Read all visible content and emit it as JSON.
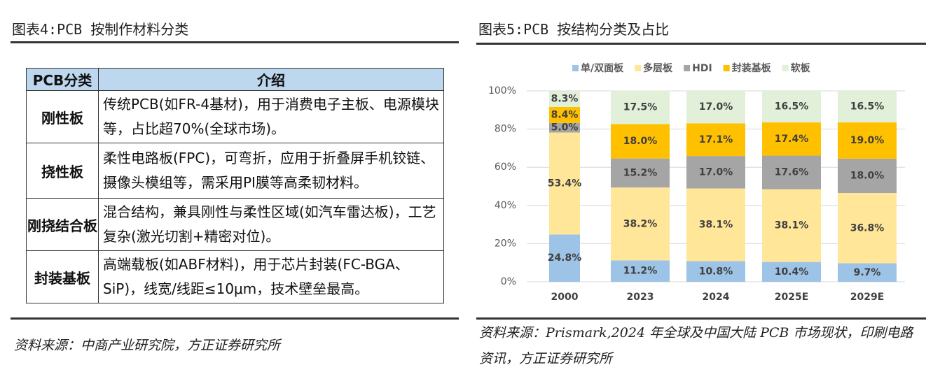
{
  "left": {
    "title": "图表4:PCB 按制作材料分类",
    "table": {
      "header": [
        "PCB分类",
        "介绍"
      ],
      "rows": [
        [
          "刚性板",
          "传统PCB(如FR-4基材)，用于消费电子主板、电源模块等，占比超70%(全球市场)。"
        ],
        [
          "挠性板",
          "柔性电路板(FPC)，可弯折，应用于折叠屏手机铰链、摄像头模组等，需采用PI膜等高柔韧材料。"
        ],
        [
          "刚挠结合板",
          "混合结构，兼具刚性与柔性区域(如汽车雷达板)，工艺复杂(激光切割+精密对位)。"
        ],
        [
          "封装基板",
          "高端载板(如ABF材料)，用于芯片封装(FC-BGA、SiP)，线宽/线距≤10μm，技术壁垒最高。"
        ]
      ]
    },
    "source": "资料来源：中商产业研究院，方正证券研究所"
  },
  "chart_data": {
    "type": "stacked_bar",
    "title": "图表5:PCB 按结构分类及占比",
    "categories": [
      "2000",
      "2023",
      "2024",
      "2025E",
      "2029E"
    ],
    "series": [
      {
        "name": "单/双面板",
        "color": "#9dc3e6",
        "values": [
          24.8,
          11.2,
          10.8,
          10.4,
          9.7
        ],
        "value_labels": [
          "24.8%",
          "11.2%",
          "10.8%",
          "10.4%",
          "9.7%"
        ]
      },
      {
        "name": "多层板",
        "color": "#ffe699",
        "values": [
          53.4,
          38.2,
          38.1,
          38.1,
          36.8
        ],
        "value_labels": [
          "53.4%",
          "38.2%",
          "38.1%",
          "38.1%",
          "36.8%"
        ]
      },
      {
        "name": "HDI",
        "color": "#a5a5a5",
        "values": [
          5.0,
          15.2,
          17.0,
          17.6,
          18.0
        ],
        "value_labels": [
          "5.0%",
          "15.2%",
          "17.0%",
          "17.6%",
          "18.0%"
        ]
      },
      {
        "name": "封装基板",
        "color": "#ffc000",
        "values": [
          8.4,
          18.0,
          17.1,
          17.4,
          19.0
        ],
        "value_labels": [
          "8.4%",
          "18.0%",
          "17.1%",
          "17.4%",
          "19.0%"
        ]
      },
      {
        "name": "软板",
        "color": "#e2f0d9",
        "values": [
          8.3,
          17.5,
          17.0,
          16.5,
          16.5
        ],
        "value_labels": [
          "8.3%",
          "17.5%",
          "17.0%",
          "16.5%",
          "16.5%"
        ]
      }
    ],
    "ylim": [
      0,
      100
    ],
    "yticks": [
      {
        "value": 0,
        "label": "0%"
      },
      {
        "value": 20,
        "label": "20%"
      },
      {
        "value": 40,
        "label": "40%"
      },
      {
        "value": 60,
        "label": "60%"
      },
      {
        "value": 80,
        "label": "80%"
      },
      {
        "value": 100,
        "label": "100%"
      }
    ],
    "grid": true,
    "legend": "top",
    "source": "资料来源：Prismark,2024 年全球及中国大陆 PCB 市场现状，印刷电路资讯，方正证券研究所"
  }
}
